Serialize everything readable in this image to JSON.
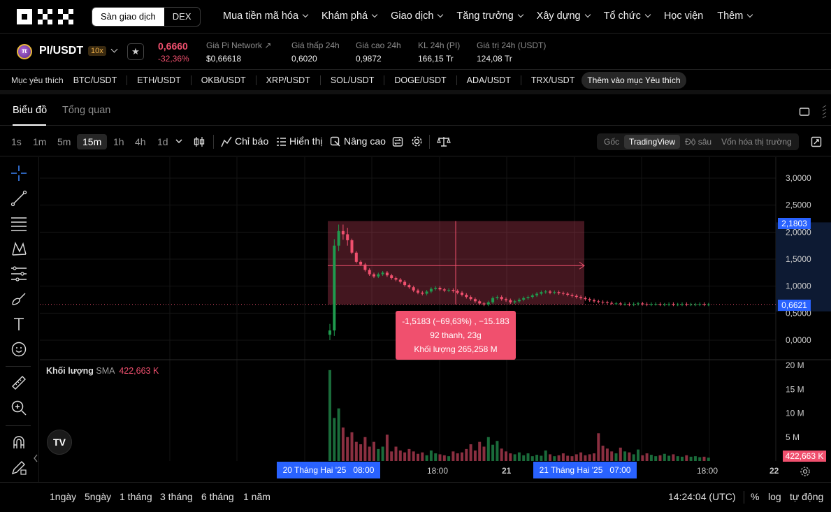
{
  "topnav": {
    "mode_tabs": [
      "Sàn giao dịch",
      "DEX"
    ],
    "menu": [
      {
        "label": "Mua tiền mã hóa",
        "chev": true
      },
      {
        "label": "Khám phá",
        "chev": true
      },
      {
        "label": "Giao dịch",
        "chev": true
      },
      {
        "label": "Tăng trưởng",
        "chev": true
      },
      {
        "label": "Xây dựng",
        "chev": true
      },
      {
        "label": "Tổ chức",
        "chev": true
      },
      {
        "label": "Học viện",
        "chev": false
      },
      {
        "label": "Thêm",
        "chev": true
      }
    ]
  },
  "ticker": {
    "coin_symbol": "π",
    "pair": "PI/USDT",
    "leverage": "10x",
    "price": "0,6660",
    "change": "-32,36%",
    "stats": [
      {
        "label": "Giá Pi Network ↗",
        "value": "$0,66618"
      },
      {
        "label": "Giá thấp 24h",
        "value": "0,6020"
      },
      {
        "label": "Giá cao 24h",
        "value": "0,9872"
      },
      {
        "label": "KL 24h (PI)",
        "value": "166,15 Tr"
      },
      {
        "label": "Giá trị 24h (USDT)",
        "value": "124,08 Tr"
      }
    ]
  },
  "favorites": {
    "label": "Mục yêu thích",
    "items": [
      "BTC/USDT",
      "ETH/USDT",
      "OKB/USDT",
      "XRP/USDT",
      "SOL/USDT",
      "DOGE/USDT",
      "ADA/USDT",
      "TRX/USDT"
    ],
    "add_label": "Thêm vào mục Yêu thích"
  },
  "chart_tabs": [
    "Biểu đồ",
    "Tổng quan"
  ],
  "toolbar": {
    "timeframes": [
      "1s",
      "1m",
      "5m",
      "15m",
      "1h",
      "4h",
      "1d"
    ],
    "active_timeframe": "15m",
    "indicators_label": "Chỉ báo",
    "display_label": "Hiển thị",
    "advanced_label": "Nâng cao",
    "views": [
      "Gốc",
      "TradingView",
      "Độ sâu",
      "Vốn hóa thị trường"
    ],
    "active_view": "TradingView"
  },
  "chart_data": {
    "type": "candlestick",
    "pair": "PI/USDT",
    "interval": "15m",
    "y_ticks": [
      "3,0000",
      "2,5000",
      "2,0000",
      "1,5000",
      "1,0000",
      "0,5000",
      "0,0000"
    ],
    "ylim": [
      0,
      3.0
    ],
    "price_labels": {
      "top": "2,1803",
      "current": "0,6621",
      "current_value": 0.6621,
      "top_value": 2.1803
    },
    "x_ticks": [
      "18:00",
      "21",
      "18:00",
      "22"
    ],
    "x_range_labels": [
      "20 Tháng Hai '25   08:00",
      "21 Tháng Hai '25   07:00"
    ],
    "measure": {
      "line1": "-1,5183 (−69,63%) , −15.183",
      "line2": "92 thanh, 23g",
      "line3": "Khối lượng 265,258 M"
    },
    "candles_close": [
      0.18,
      1.75,
      2.02,
      1.96,
      1.85,
      1.62,
      1.45,
      1.4,
      1.3,
      1.22,
      1.18,
      1.22,
      1.25,
      1.2,
      1.15,
      1.12,
      1.08,
      1.02,
      0.98,
      0.92,
      0.88,
      0.86,
      0.9,
      0.95,
      0.97,
      0.94,
      0.92,
      0.93,
      0.91,
      0.88,
      0.84,
      0.8,
      0.76,
      0.72,
      0.68,
      0.66,
      0.7,
      0.78,
      0.8,
      0.76,
      0.74,
      0.7,
      0.72,
      0.75,
      0.78,
      0.8,
      0.83,
      0.86,
      0.89,
      0.9,
      0.88,
      0.89,
      0.87,
      0.86,
      0.84,
      0.82,
      0.8,
      0.78,
      0.76,
      0.74,
      0.72,
      0.71,
      0.7,
      0.69,
      0.68,
      0.68,
      0.67,
      0.67,
      0.66,
      0.67,
      0.68,
      0.67,
      0.66,
      0.67,
      0.67,
      0.66,
      0.66,
      0.67,
      0.66,
      0.66,
      0.67,
      0.66,
      0.66,
      0.66,
      0.67,
      0.66,
      0.66
    ],
    "volume": {
      "label": "Khối lượng",
      "sma_label": "SMA",
      "sma_value": "422,663 K",
      "y_ticks": [
        "20 M",
        "15 M",
        "10 M",
        "5 M"
      ],
      "ylim": [
        0,
        20
      ],
      "current_label": "422,663 K",
      "bars_m": [
        19,
        9,
        11,
        7,
        5,
        6,
        4,
        3.5,
        5,
        3,
        4,
        2.5,
        3,
        5.5,
        2,
        3,
        2.2,
        1.8,
        2.5,
        2,
        1.5,
        1.8,
        1.2,
        2.2,
        1.6,
        1.4,
        1.2,
        1,
        2,
        1.6,
        1.8,
        2.5,
        3.5,
        2.2,
        4,
        3,
        5,
        3.4,
        4.2,
        2.6,
        2,
        1.6,
        1.4,
        1.8,
        1.2,
        1.6,
        1,
        1.3,
        1.1,
        2.2,
        1.4,
        1,
        1.2,
        1.6,
        1.1,
        1,
        1.4,
        1.8,
        1.2,
        1.4,
        1.6,
        5.8,
        3.2,
        2.6,
        2,
        1.6,
        2.8,
        2,
        1.8,
        1.4,
        2.4,
        1.2,
        1.6,
        1.3,
        1,
        1.2,
        1.5,
        1.1,
        1.4,
        1,
        0.9,
        1.2,
        0.9,
        1,
        0.8,
        0.9,
        0.7
      ]
    }
  },
  "bottombar": {
    "ranges": [
      "1ngày",
      "5ngày",
      "1 tháng",
      "3 tháng",
      "6 tháng",
      "1 năm"
    ],
    "clock": "14:24:04 (UTC)",
    "opts": [
      "%",
      "log",
      "tự động"
    ]
  },
  "colors": {
    "up": "#1f9b4e",
    "down": "#f0506e",
    "accent_blue": "#2962ff"
  }
}
